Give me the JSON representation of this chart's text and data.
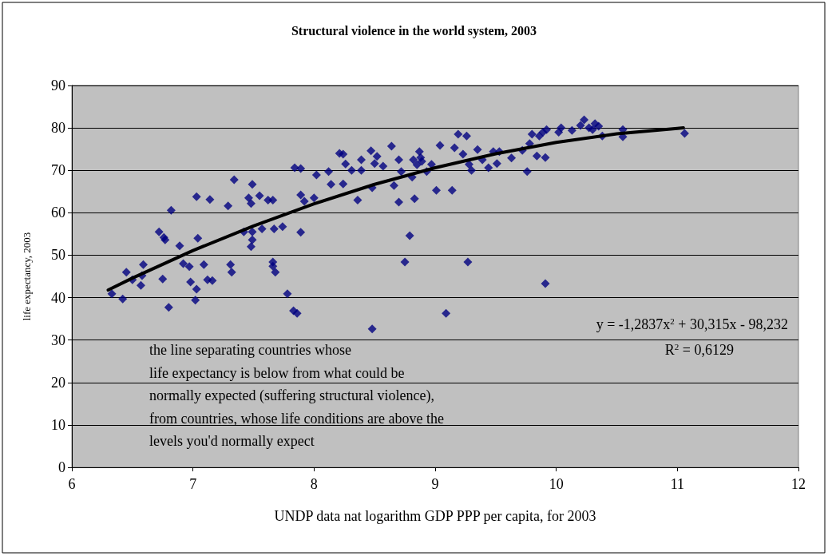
{
  "chart_data": {
    "type": "scatter",
    "title": "Structural violence in the world system, 2003",
    "xlabel": "UNDP data nat logarithm GDP PPP per capita, for 2003",
    "ylabel": "life expectancy, 2003",
    "xlim": [
      6,
      12
    ],
    "xticks": [
      6,
      7,
      8,
      9,
      10,
      11,
      12
    ],
    "ylim": [
      0,
      90
    ],
    "yticks": [
      0,
      10,
      20,
      30,
      40,
      50,
      60,
      70,
      80,
      90
    ],
    "grid": "y",
    "marker": "diamond",
    "annotations": [
      "y = -1,2837x$^{2}$ + 30,315x - 98,232",
      "R$^{2}$ = 0,6129",
      "the line separating countries whose\nlife expectancy is below from what could be\nnormally expected (suffering structural violence),\nfrom countries, whose life conditions are above the\nlevels you'd normally expect"
    ],
    "series": [
      {
        "color": "#000080",
        "x": [
          6.33,
          6.42,
          6.45,
          6.5,
          6.57,
          6.59,
          6.58,
          6.72,
          6.76,
          6.77,
          6.75,
          6.8,
          6.82,
          6.89,
          6.92,
          6.97,
          6.98,
          7.03,
          7.02,
          7.03,
          7.04,
          7.09,
          7.12,
          7.14,
          7.16,
          7.29,
          7.31,
          7.32,
          7.34,
          7.42,
          7.46,
          7.49,
          7.48,
          7.49,
          7.48,
          7.49,
          7.55,
          7.57,
          7.62,
          7.66,
          7.67,
          7.66,
          7.66,
          7.68,
          7.74,
          7.78,
          7.83,
          7.86,
          7.84,
          7.89,
          7.89,
          7.89,
          7.92,
          8.0,
          8.02,
          8.12,
          8.14,
          8.21,
          8.24,
          8.24,
          8.26,
          8.31,
          8.36,
          8.39,
          8.47,
          8.48,
          8.48,
          8.39,
          8.5,
          8.52,
          8.57,
          8.64,
          8.66,
          8.7,
          8.72,
          8.7,
          8.75,
          8.79,
          8.81,
          8.83,
          8.87,
          8.89,
          8.93,
          8.97,
          9.01,
          9.04,
          9.09,
          9.14,
          9.16,
          9.19,
          9.23,
          9.26,
          9.27,
          9.28,
          9.3,
          9.35,
          9.39,
          9.44,
          9.48,
          9.51,
          9.53,
          9.63,
          9.72,
          9.76,
          9.78,
          9.8,
          9.84,
          9.86,
          9.89,
          9.91,
          9.91,
          9.92,
          10.02,
          10.04,
          10.13,
          10.2,
          10.23,
          10.27,
          10.3,
          10.32,
          10.35,
          10.38,
          10.55,
          10.55,
          11.06,
          8.82,
          8.85,
          8.88
        ],
        "values": [
          40.9,
          39.7,
          46,
          44.2,
          42.9,
          47.8,
          45.2,
          55.5,
          54.2,
          53.6,
          44.4,
          37.7,
          60.6,
          52.2,
          48,
          47.3,
          43.7,
          42,
          39.4,
          63.8,
          54,
          47.8,
          44.2,
          63.1,
          44,
          61.6,
          47.8,
          46,
          67.8,
          55.5,
          63.5,
          66.7,
          62.2,
          53.6,
          52,
          55.5,
          64,
          56.2,
          63,
          63,
          56.2,
          48.4,
          47.4,
          46,
          56.7,
          40.9,
          36.9,
          36.3,
          70.6,
          70.4,
          55.4,
          64.2,
          62.7,
          63.5,
          68.9,
          69.7,
          66.7,
          74,
          73.8,
          66.8,
          71.5,
          70,
          63,
          70,
          74.6,
          65.9,
          32.6,
          72.5,
          71.6,
          73.3,
          71,
          75.7,
          66.4,
          72.5,
          69.7,
          62.5,
          48.4,
          54.6,
          68.4,
          63.3,
          74.4,
          72.1,
          69.7,
          71.4,
          65.3,
          75.9,
          36.3,
          65.3,
          75.3,
          78.5,
          73.8,
          78.1,
          48.4,
          71.4,
          70,
          74.9,
          72.5,
          70.6,
          74.4,
          71.6,
          74.4,
          72.9,
          74.7,
          69.7,
          76.3,
          78.5,
          73.4,
          78.1,
          79,
          73,
          43.3,
          79.6,
          79,
          80,
          79.4,
          80.6,
          81.9,
          80,
          79.6,
          81,
          80.4,
          78.1,
          79.6,
          77.9,
          78.7,
          72.5,
          71.3,
          73
        ]
      },
      {
        "type": "line",
        "color": "#000000",
        "marker": "none",
        "x": [
          6.3,
          6.5,
          7,
          7.5,
          8,
          8.5,
          9,
          9.5,
          10,
          10.5,
          11,
          11.05
        ],
        "values": [
          41.8,
          44.6,
          51.1,
          56.9,
          62.1,
          66.7,
          70.6,
          73.9,
          76.6,
          78.6,
          79.9,
          80
        ]
      }
    ]
  }
}
